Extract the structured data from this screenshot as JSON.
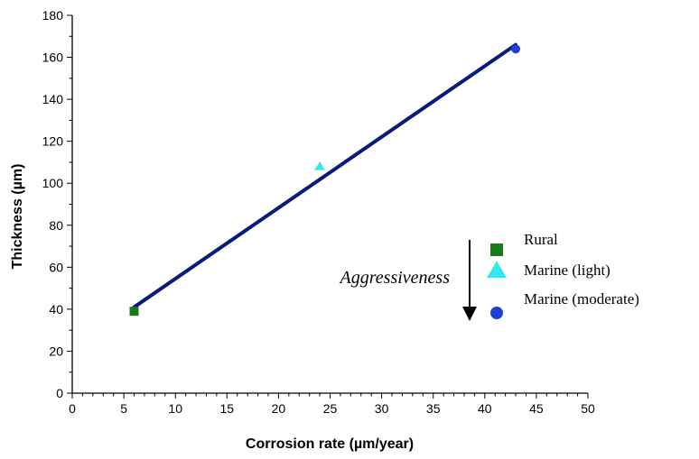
{
  "chart_data": {
    "type": "scatter",
    "xlabel": "Corrosion rate (µm/year)",
    "ylabel": "Thickness (µm)",
    "xlim": [
      0,
      50
    ],
    "ylim": [
      0,
      180
    ],
    "x_ticks": [
      "0",
      "5",
      "10",
      "15",
      "20",
      "25",
      "30",
      "35",
      "40",
      "45",
      "50"
    ],
    "y_ticks": [
      "0",
      "20",
      "40",
      "60",
      "80",
      "100",
      "120",
      "140",
      "160",
      "180"
    ],
    "grid": false,
    "legend_position": "right",
    "series": [
      {
        "name": "Rural",
        "marker": "square",
        "color": "#1a7a1a",
        "x": [
          6
        ],
        "y": [
          39
        ]
      },
      {
        "name": "Marine (light)",
        "marker": "triangle",
        "color": "#33e6f0",
        "x": [
          24
        ],
        "y": [
          108
        ]
      },
      {
        "name": "Marine (moderate)",
        "marker": "circle",
        "color": "#1f3fd6",
        "x": [
          43
        ],
        "y": [
          164
        ]
      }
    ],
    "fit_line": {
      "color": "#0a1a7a",
      "x": [
        6,
        43
      ],
      "y": [
        41,
        166
      ]
    },
    "annotation": {
      "text": "Aggressiveness",
      "arrow_direction": "down"
    }
  }
}
